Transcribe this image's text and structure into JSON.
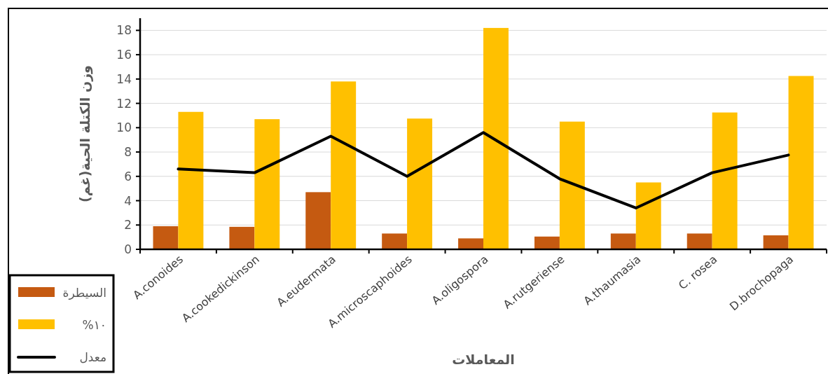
{
  "chart_data": {
    "type": "bar",
    "xlabel": "المعاملات",
    "ylabel": "وزن الكتلة الحية(غم)",
    "categories": [
      "A.conoides",
      "A.cookedickinson",
      "A.eudermata",
      "A.microscaphoides",
      "A.oligospora",
      "A.rutgeriense",
      "A.thaumasia",
      "C. rosea",
      "D.brochopaga"
    ],
    "series": [
      {
        "name": "السيطرة",
        "color": "#c55a11",
        "values": [
          1.9,
          1.85,
          4.7,
          1.3,
          0.9,
          1.05,
          1.3,
          1.3,
          1.15
        ]
      },
      {
        "name": "١٠%",
        "color": "#ffc000",
        "values": [
          11.3,
          10.7,
          13.8,
          10.75,
          18.2,
          10.5,
          5.5,
          11.25,
          14.25
        ]
      },
      {
        "name": "معدل",
        "type": "line",
        "color": "#000000",
        "values": [
          6.6,
          6.3,
          9.3,
          6.0,
          9.6,
          5.8,
          3.4,
          6.3,
          7.75
        ]
      }
    ],
    "ylim": [
      0,
      19
    ],
    "yticks": [
      0,
      2,
      4,
      6,
      8,
      10,
      12,
      14,
      16,
      18
    ],
    "grid": "y",
    "legend": "bottom left",
    "marker": "none",
    "line_style": "solid"
  }
}
